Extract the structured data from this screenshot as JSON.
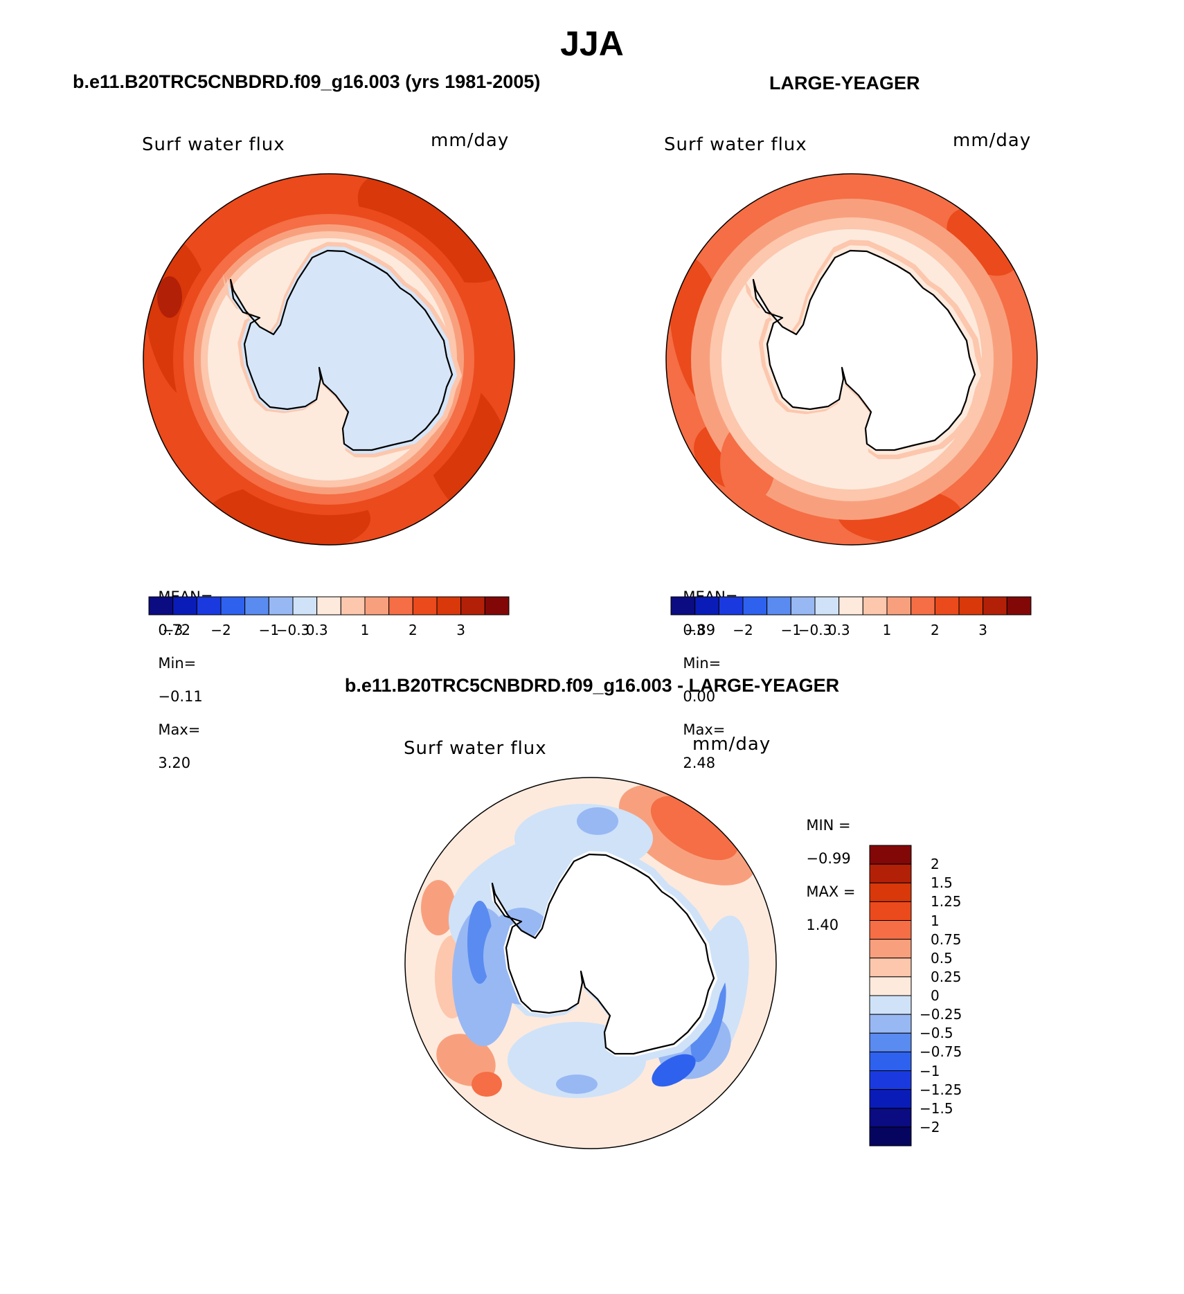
{
  "title": "JJA",
  "panels": [
    {
      "case_title": "b.e11.B20TRC5CNBDRD.f09_g16.003 (yrs 1981-2005)",
      "variable": "Surf water flux",
      "units": "mm/day",
      "stats": {
        "mean_label": "MEAN=",
        "mean": "0.72",
        "min_label": "Min=",
        "min": "−0.11",
        "max_label": "Max=",
        "max": "3.20"
      }
    },
    {
      "case_title": "LARGE-YEAGER",
      "variable": "Surf water flux",
      "units": "mm/day",
      "stats": {
        "mean_label": "MEAN=",
        "mean": "0.89",
        "min_label": "Min=",
        "min": "0.00",
        "max_label": "Max=",
        "max": "2.48"
      }
    },
    {
      "case_title": "b.e11.B20TRC5CNBDRD.f09_g16.003 - LARGE-YEAGER",
      "variable": "Surf water flux",
      "units": "mm/day",
      "stats": {
        "min_label": "MIN =",
        "min": "−0.99",
        "max_label": "MAX =",
        "max": "1.40"
      }
    }
  ],
  "colorbars": {
    "horizontal_labels": [
      "−3",
      "−2",
      "−1",
      "−0.3",
      "0.3",
      "1",
      "2",
      "3"
    ],
    "horizontal_colors": [
      "#0b0b82",
      "#0a1cb8",
      "#1a3ae0",
      "#2e62ee",
      "#5a8bf0",
      "#98b8f4",
      "#cfe2f8",
      "#fdeadd",
      "#fcc7ad",
      "#f8a07e",
      "#f56e45",
      "#eb4a1c",
      "#d8380a",
      "#b32008",
      "#820808"
    ],
    "difference_labels": [
      "2",
      "1.5",
      "1.25",
      "1",
      "0.75",
      "0.5",
      "0.25",
      "0",
      "−0.25",
      "−0.5",
      "−0.75",
      "−1",
      "−1.25",
      "−1.5",
      "−2"
    ],
    "difference_colors": [
      "#820808",
      "#b32008",
      "#d8380a",
      "#eb4a1c",
      "#f56e45",
      "#f8a07e",
      "#fcc7ad",
      "#fdeadd",
      "#cfe2f8",
      "#98b8f4",
      "#5a8bf0",
      "#2e62ee",
      "#1a3ae0",
      "#0a1cb8",
      "#0b0b82",
      "#050560"
    ]
  },
  "map_style": {
    "ocean_ring_panel1": "#eb4a1c",
    "ocean_ring_panel2": "#f56e45",
    "land_panel1": "#d6e6f8",
    "land_panel2": "#ffffff",
    "diff_background": "#fdeadd",
    "coastline": "#000000"
  }
}
